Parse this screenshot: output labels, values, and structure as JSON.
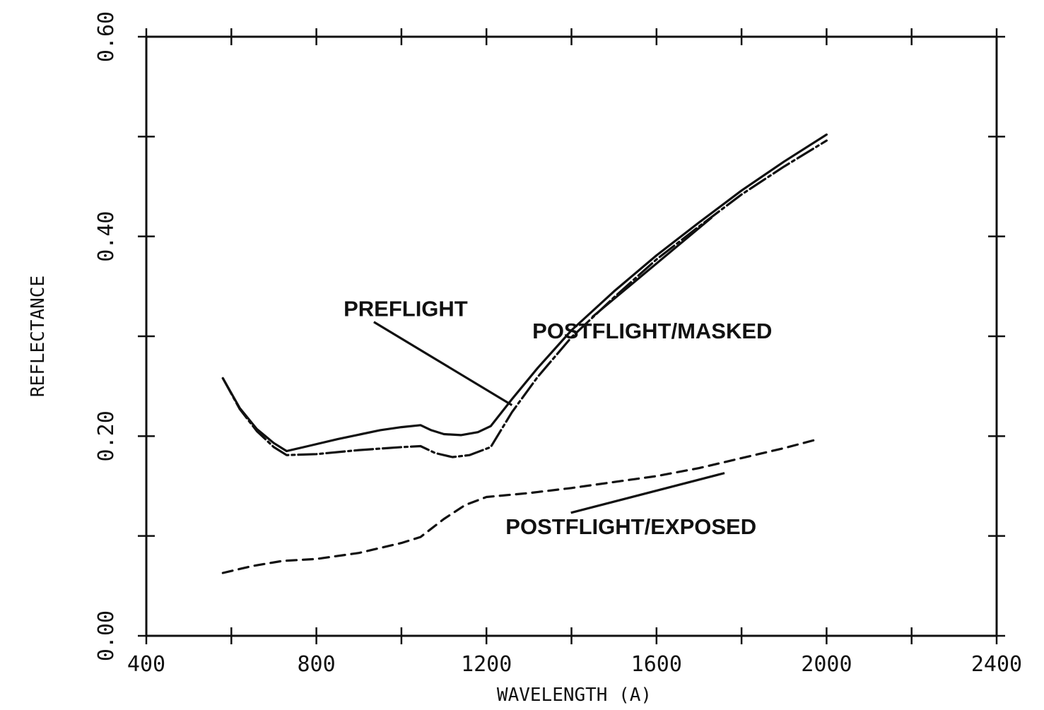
{
  "chart_data": {
    "type": "line",
    "title": "",
    "xlabel": "WAVELENGTH (A)",
    "ylabel": "REFLECTANCE",
    "xlim": [
      400,
      2400
    ],
    "ylim": [
      0,
      0.6
    ],
    "x_ticks": [
      400,
      800,
      1200,
      1600,
      2000,
      2400
    ],
    "x_tick_labels": [
      "400",
      "800",
      "1200",
      "1600",
      "2000",
      "2400"
    ],
    "x_minor_step": 200,
    "y_ticks": [
      0.0,
      0.2,
      0.4,
      0.6
    ],
    "y_tick_labels": [
      "0.00",
      "0.20",
      "0.40",
      "0.60"
    ],
    "y_minor_step": 0.1,
    "grid": false,
    "legend": "none",
    "series": [
      {
        "name": "PREFLIGHT",
        "style": "solid",
        "color": "#111111",
        "points": [
          [
            580,
            0.258
          ],
          [
            620,
            0.228
          ],
          [
            660,
            0.207
          ],
          [
            700,
            0.193
          ],
          [
            730,
            0.185
          ],
          [
            780,
            0.19
          ],
          [
            850,
            0.197
          ],
          [
            950,
            0.206
          ],
          [
            1000,
            0.209
          ],
          [
            1045,
            0.211
          ],
          [
            1070,
            0.206
          ],
          [
            1100,
            0.202
          ],
          [
            1140,
            0.201
          ],
          [
            1180,
            0.204
          ],
          [
            1210,
            0.21
          ],
          [
            1260,
            0.237
          ],
          [
            1320,
            0.268
          ],
          [
            1400,
            0.306
          ],
          [
            1500,
            0.345
          ],
          [
            1600,
            0.381
          ],
          [
            1700,
            0.414
          ],
          [
            1800,
            0.446
          ],
          [
            1900,
            0.475
          ],
          [
            2000,
            0.502
          ]
        ]
      },
      {
        "name": "POSTFLIGHT/MASKED",
        "style": "dash-dot",
        "color": "#111111",
        "points": [
          [
            580,
            0.258
          ],
          [
            620,
            0.227
          ],
          [
            660,
            0.205
          ],
          [
            700,
            0.189
          ],
          [
            730,
            0.181
          ],
          [
            800,
            0.182
          ],
          [
            900,
            0.186
          ],
          [
            1000,
            0.189
          ],
          [
            1045,
            0.19
          ],
          [
            1080,
            0.183
          ],
          [
            1120,
            0.179
          ],
          [
            1160,
            0.181
          ],
          [
            1210,
            0.189
          ],
          [
            1260,
            0.224
          ],
          [
            1320,
            0.259
          ],
          [
            1400,
            0.299
          ],
          [
            1500,
            0.339
          ],
          [
            1600,
            0.377
          ],
          [
            1700,
            0.41
          ],
          [
            1800,
            0.442
          ],
          [
            1900,
            0.47
          ],
          [
            2000,
            0.496
          ]
        ]
      },
      {
        "name": "POSTFLIGHT/EXPOSED",
        "style": "dashed",
        "color": "#111111",
        "points": [
          [
            580,
            0.063
          ],
          [
            650,
            0.07
          ],
          [
            720,
            0.075
          ],
          [
            800,
            0.077
          ],
          [
            900,
            0.083
          ],
          [
            1000,
            0.093
          ],
          [
            1045,
            0.099
          ],
          [
            1100,
            0.117
          ],
          [
            1150,
            0.131
          ],
          [
            1200,
            0.139
          ],
          [
            1300,
            0.143
          ],
          [
            1400,
            0.148
          ],
          [
            1500,
            0.154
          ],
          [
            1600,
            0.16
          ],
          [
            1700,
            0.168
          ],
          [
            1800,
            0.178
          ],
          [
            1900,
            0.188
          ],
          [
            1980,
            0.197
          ]
        ]
      }
    ],
    "annotations": [
      {
        "text": "PREFLIGHT",
        "x": 1010,
        "y": 0.32,
        "arrow_to": [
          1260,
          0.231
        ]
      },
      {
        "text": "POSTFLIGHT/MASKED",
        "x": 1590,
        "y": 0.298,
        "arrow_to": [
          1730,
          0.419
        ]
      },
      {
        "text": "POSTFLIGHT/EXPOSED",
        "x": 1540,
        "y": 0.102,
        "arrow_to": [
          1760,
          0.163
        ]
      }
    ]
  }
}
